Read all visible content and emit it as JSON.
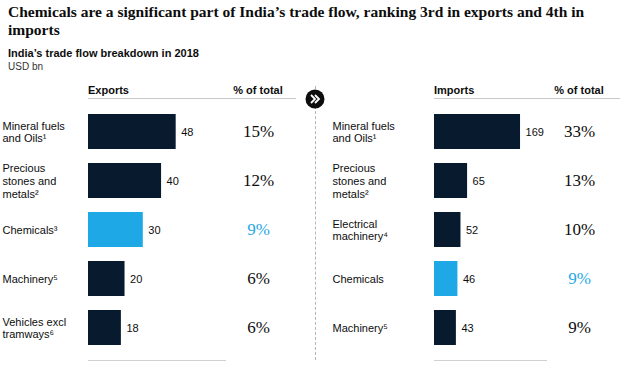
{
  "title": "Chemicals are a significant part of India’s trade flow, ranking 3rd in exports and 4th in imports",
  "subtitle": "India’s trade flow breakdown in 2018",
  "units": "USD bn",
  "chart_data": [
    {
      "type": "bar",
      "orientation": "horizontal",
      "title": "Exports",
      "categories": [
        "Mineral fuels and Oils¹",
        "Precious stones and metals²",
        "Chemicals³",
        "Machinery⁵",
        "Vehicles excl tramways⁶"
      ],
      "values": [
        48,
        40,
        30,
        20,
        18
      ],
      "colors": [
        "#081a2e",
        "#081a2e",
        "#1fa8e6",
        "#081a2e",
        "#081a2e"
      ],
      "data_labels": true,
      "tick_labels": "y",
      "xlim": [
        0,
        75
      ],
      "shares": {
        "title": "% of total",
        "values": [
          15,
          12,
          9,
          6,
          6
        ],
        "value_labels": [
          "15%",
          "12%",
          "9%",
          "6%",
          "6%"
        ],
        "colors": [
          "#0d0d0d",
          "#0d0d0d",
          "#1fa8e6",
          "#0d0d0d",
          "#0d0d0d"
        ]
      }
    },
    {
      "type": "bar",
      "orientation": "horizontal",
      "title": "Imports",
      "categories": [
        "Mineral fuels and Oils¹",
        "Precious stones and metals²",
        "Electrical machinery⁴",
        "Chemicals",
        "Machinery⁵"
      ],
      "values": [
        169,
        65,
        52,
        46,
        43
      ],
      "colors": [
        "#081a2e",
        "#081a2e",
        "#081a2e",
        "#1fa8e6",
        "#081a2e"
      ],
      "data_labels": true,
      "tick_labels": "y",
      "xlim": [
        0,
        220
      ],
      "shares": {
        "title": "% of total",
        "values": [
          33,
          13,
          10,
          9,
          9
        ],
        "value_labels": [
          "33%",
          "13%",
          "10%",
          "9%",
          "9%"
        ],
        "colors": [
          "#0d0d0d",
          "#0d0d0d",
          "#0d0d0d",
          "#1fa8e6",
          "#0d0d0d"
        ]
      }
    }
  ]
}
